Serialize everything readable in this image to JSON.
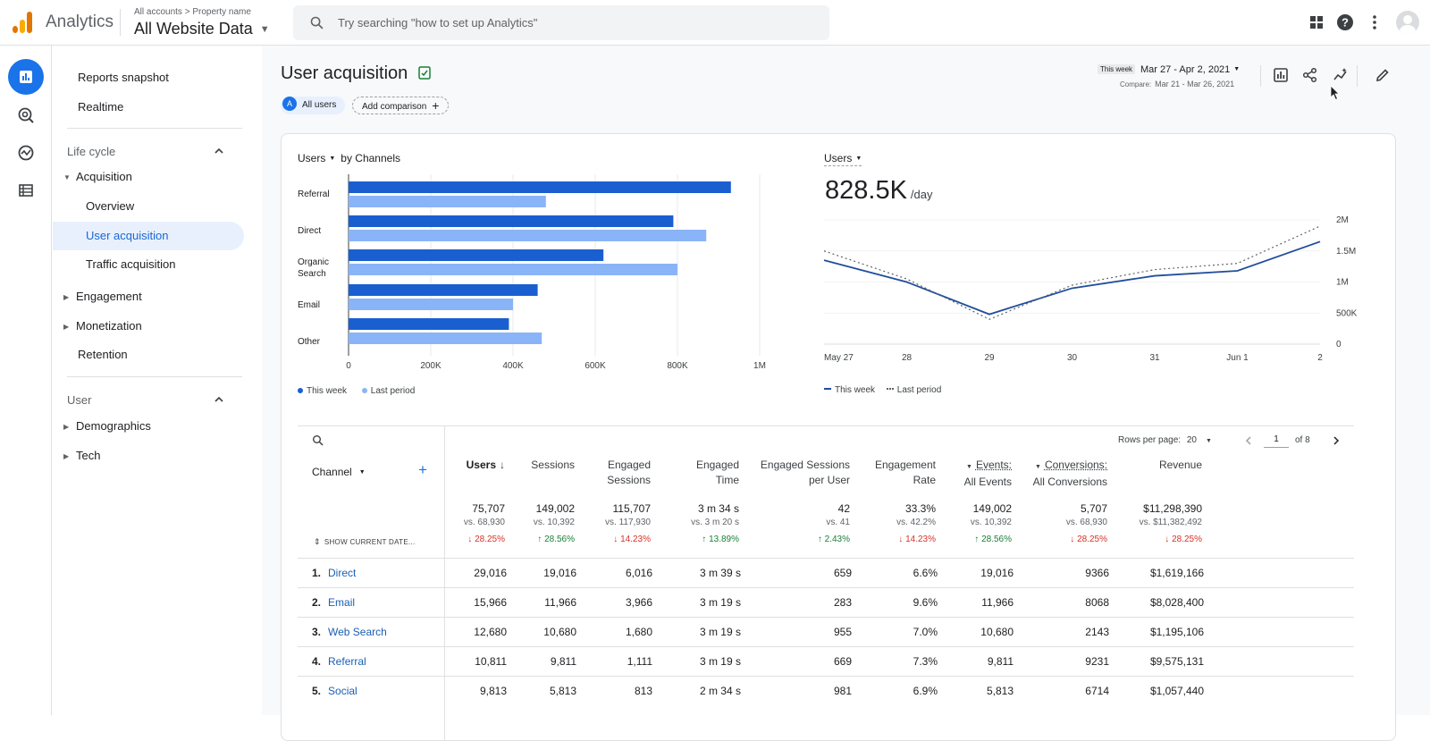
{
  "header": {
    "app_title": "Analytics",
    "breadcrumb_all": "All accounts",
    "breadcrumb_property": "Property name",
    "property": "All Website Data",
    "search_placeholder": "Try searching \"how to set up Analytics\""
  },
  "nav": {
    "reports_snapshot": "Reports snapshot",
    "realtime": "Realtime",
    "lifecycle": "Life cycle",
    "acquisition": "Acquisition",
    "overview": "Overview",
    "user_acquisition": "User acquisition",
    "traffic_acquisition": "Traffic acquisition",
    "engagement": "Engagement",
    "monetization": "Monetization",
    "retention": "Retention",
    "user": "User",
    "demographics": "Demographics",
    "tech": "Tech"
  },
  "page": {
    "title": "User acquisition",
    "all_users_chip": "All users",
    "all_users_letter": "A",
    "add_comparison": "Add comparison",
    "this_week_tag": "This week",
    "date_range": "Mar 27 - Apr 2, 2021",
    "compare_label": "Compare:",
    "compare_range": "Mar 21 - Mar 26, 2021"
  },
  "bar_chart": {
    "metric": "Users",
    "by": "by Channels",
    "legend_this": "This week",
    "legend_last": "Last period"
  },
  "line_chart": {
    "metric": "Users",
    "big_value": "828.5K",
    "big_unit": "/day",
    "legend_this": "This week",
    "legend_last": "Last period"
  },
  "chart_data": [
    {
      "type": "bar",
      "categories": [
        "Referral",
        "Direct",
        "Organic Search",
        "Email",
        "Other"
      ],
      "series": [
        {
          "name": "This week",
          "values": [
            930000,
            790000,
            620000,
            460000,
            390000
          ]
        },
        {
          "name": "Last period",
          "values": [
            480000,
            870000,
            800000,
            400000,
            470000
          ]
        }
      ],
      "xlim": [
        0,
        1000000
      ],
      "xticks": [
        "0",
        "200K",
        "400K",
        "600K",
        "800K",
        "1M"
      ],
      "legend": "bottom-left"
    },
    {
      "type": "line",
      "x": [
        "May 27",
        "28",
        "29",
        "30",
        "31",
        "Jun 1",
        "2"
      ],
      "series": [
        {
          "name": "This week",
          "values": [
            1350000,
            1000000,
            480000,
            900000,
            1100000,
            1180000,
            1650000
          ]
        },
        {
          "name": "Last period",
          "values": [
            1500000,
            1050000,
            400000,
            950000,
            1200000,
            1300000,
            1900000
          ]
        }
      ],
      "ylim": [
        0,
        2000000
      ],
      "yticks": [
        "0",
        "500K",
        "1M",
        "1.5M",
        "2M"
      ],
      "legend": "bottom-left"
    }
  ],
  "table": {
    "rows_per_page_label": "Rows per page:",
    "rows_per_page": "20",
    "page": "1",
    "of_pages": "of 8",
    "channel_header": "Channel",
    "show_current": "SHOW CURRENT DATE...",
    "columns": [
      {
        "line1": "Users",
        "line2": ""
      },
      {
        "line1": "Sessions",
        "line2": ""
      },
      {
        "line1": "Engaged",
        "line2": "Sessions"
      },
      {
        "line1": "Engaged",
        "line2": "Time"
      },
      {
        "line1": "Engaged Sessions",
        "line2": "per User"
      },
      {
        "line1": "Engagement",
        "line2": "Rate"
      },
      {
        "line1": "Events:",
        "line2": "All Events"
      },
      {
        "line1": "Conversions:",
        "line2": "All Conversions"
      },
      {
        "line1": "Revenue",
        "line2": ""
      }
    ],
    "totals": [
      {
        "v": "75,707",
        "vs": "vs. 68,930",
        "ch": "28.25%",
        "dir": "down"
      },
      {
        "v": "149,002",
        "vs": "vs. 10,392",
        "ch": "28.56%",
        "dir": "up"
      },
      {
        "v": "115,707",
        "vs": "vs. 117,930",
        "ch": "14.23%",
        "dir": "down"
      },
      {
        "v": "3 m 34 s",
        "vs": "vs. 3 m 20 s",
        "ch": "13.89%",
        "dir": "up"
      },
      {
        "v": "42",
        "vs": "vs. 41",
        "ch": "2.43%",
        "dir": "up"
      },
      {
        "v": "33.3%",
        "vs": "vs. 42.2%",
        "ch": "14.23%",
        "dir": "down"
      },
      {
        "v": "149,002",
        "vs": "vs. 10,392",
        "ch": "28.56%",
        "dir": "up"
      },
      {
        "v": "5,707",
        "vs": "vs. 68,930",
        "ch": "28.25%",
        "dir": "down"
      },
      {
        "v": "$11,298,390",
        "vs": "vs. $11,382,492",
        "ch": "28.25%",
        "dir": "down"
      }
    ],
    "rows": [
      {
        "n": "1.",
        "name": "Direct",
        "vals": [
          "29,016",
          "19,016",
          "6,016",
          "3 m 39 s",
          "659",
          "6.6%",
          "19,016",
          "9366",
          "$1,619,166"
        ]
      },
      {
        "n": "2.",
        "name": "Email",
        "vals": [
          "15,966",
          "11,966",
          "3,966",
          "3 m 19 s",
          "283",
          "9.6%",
          "11,966",
          "8068",
          "$8,028,400"
        ]
      },
      {
        "n": "3.",
        "name": "Web Search",
        "vals": [
          "12,680",
          "10,680",
          "1,680",
          "3 m 19 s",
          "955",
          "7.0%",
          "10,680",
          "2143",
          "$1,195,106"
        ]
      },
      {
        "n": "4.",
        "name": "Referral",
        "vals": [
          "10,811",
          "9,811",
          "1,111",
          "3 m 19 s",
          "669",
          "7.3%",
          "9,811",
          "9231",
          "$9,575,131"
        ]
      },
      {
        "n": "5.",
        "name": "Social",
        "vals": [
          "9,813",
          "5,813",
          "813",
          "2 m 34 s",
          "981",
          "6.9%",
          "5,813",
          "6714",
          "$1,057,440"
        ]
      }
    ]
  },
  "colors": {
    "this_week": "#1a5fd0",
    "last_period": "#8ab4f8",
    "line_this": "#1f4e9c",
    "accent": "#1a73e8"
  }
}
